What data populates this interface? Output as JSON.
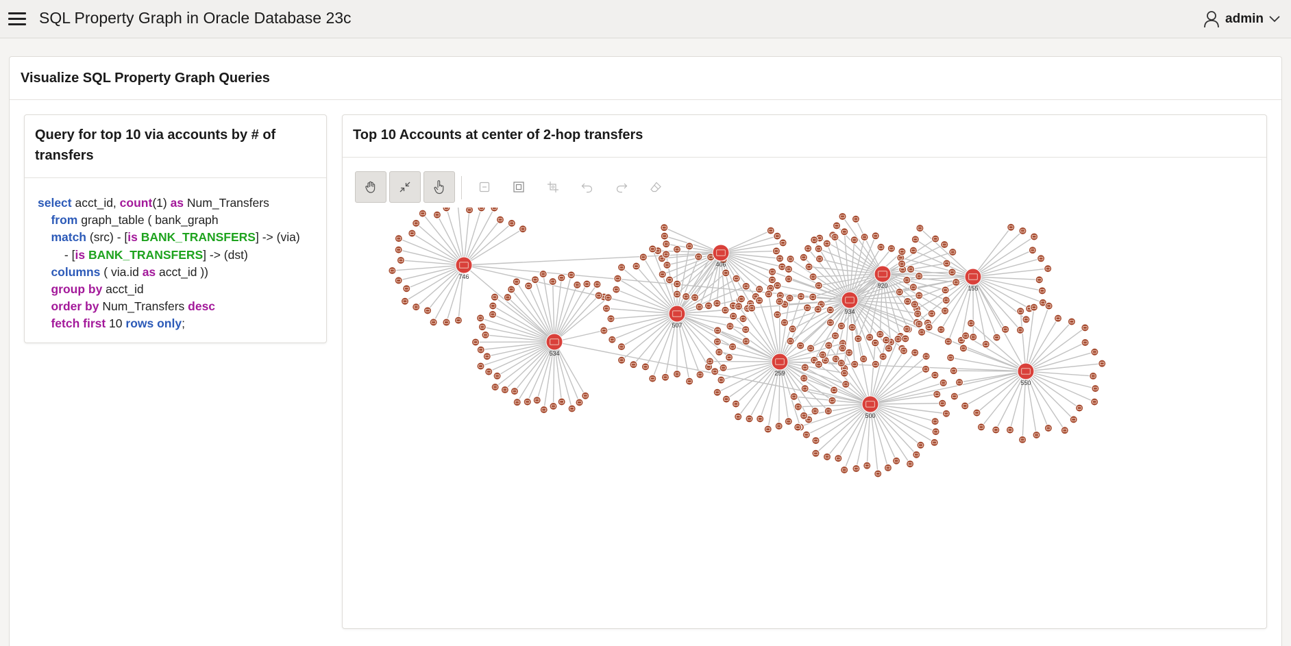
{
  "header": {
    "app_title": "SQL Property Graph in Oracle Database 23c",
    "user_name": "admin",
    "menu_icon": "hamburger-menu-icon",
    "user_icon": "user-icon",
    "user_dropdown_icon": "chevron-down-icon"
  },
  "region": {
    "title": "Visualize SQL Property Graph Queries"
  },
  "query_card": {
    "title": "Query for top 10 via accounts by # of transfers",
    "code_lines": [
      [
        [
          "kw",
          "select"
        ],
        [
          "t",
          " acct_id, "
        ],
        [
          "kp",
          "count"
        ],
        [
          "t",
          "(1) "
        ],
        [
          "kp",
          "as"
        ],
        [
          "t",
          " Num_Transfers"
        ]
      ],
      [
        [
          "t",
          "    "
        ],
        [
          "kw",
          "from"
        ],
        [
          "t",
          " graph_table ( bank_graph"
        ]
      ],
      [
        [
          "t",
          "    "
        ],
        [
          "kw",
          "match"
        ],
        [
          "t",
          " (src) - ["
        ],
        [
          "kp",
          "is"
        ],
        [
          "t",
          " "
        ],
        [
          "kg",
          "BANK_TRANSFERS"
        ],
        [
          "t",
          "] -> (via)"
        ]
      ],
      [
        [
          "t",
          "        - ["
        ],
        [
          "kp",
          "is"
        ],
        [
          "t",
          " "
        ],
        [
          "kg",
          "BANK_TRANSFERS"
        ],
        [
          "t",
          "] -> (dst)"
        ]
      ],
      [
        [
          "t",
          "    "
        ],
        [
          "kw",
          "columns"
        ],
        [
          "t",
          " ( via.id "
        ],
        [
          "kp",
          "as"
        ],
        [
          "t",
          " acct_id ))"
        ]
      ],
      [
        [
          "t",
          "    "
        ],
        [
          "kp",
          "group by"
        ],
        [
          "t",
          " acct_id"
        ]
      ],
      [
        [
          "t",
          "    "
        ],
        [
          "kp",
          "order by"
        ],
        [
          "t",
          " Num_Transfers "
        ],
        [
          "kp",
          "desc"
        ]
      ],
      [
        [
          "t",
          "    "
        ],
        [
          "kp",
          "fetch first"
        ],
        [
          "t",
          " 10 "
        ],
        [
          "kw",
          "rows only"
        ],
        [
          "t",
          ";"
        ]
      ]
    ],
    "colors": {
      "keyword_blue": "#2c5ab8",
      "keyword_purple": "#a3199a",
      "keyword_green": "#1ea31e"
    }
  },
  "graph_card": {
    "title": "Top 10 Accounts at center of 2-hop transfers",
    "toolbar": [
      {
        "name": "pan-tool-button",
        "icon": "hand-icon",
        "active": true,
        "enabled": true
      },
      {
        "name": "fit-to-screen-button",
        "icon": "compress-arrows-icon",
        "active": true,
        "enabled": true
      },
      {
        "name": "select-tool-button",
        "icon": "pointer-hand-icon",
        "active": true,
        "enabled": true
      },
      {
        "name": "collapse-button",
        "icon": "minus-box-icon",
        "active": false,
        "enabled": false
      },
      {
        "name": "focus-button",
        "icon": "focus-frame-icon",
        "active": false,
        "enabled": false
      },
      {
        "name": "group-button",
        "icon": "group-nodes-icon",
        "active": false,
        "enabled": false
      },
      {
        "name": "undo-button",
        "icon": "undo-icon",
        "active": false,
        "enabled": false
      },
      {
        "name": "redo-button",
        "icon": "redo-icon",
        "active": false,
        "enabled": false
      },
      {
        "name": "reset-button",
        "icon": "eraser-icon",
        "active": false,
        "enabled": false
      }
    ],
    "graph": {
      "hub_color": "#d9403a",
      "leaf_color": "#a64d32",
      "edge_color": "#c2c2c2",
      "hubs": [
        {
          "label": "746",
          "leaves": 24
        },
        {
          "label": "406",
          "leaves": 30
        },
        {
          "label": "920",
          "leaves": 34
        },
        {
          "label": "155",
          "leaves": 30
        },
        {
          "label": "934",
          "leaves": 44
        },
        {
          "label": "507",
          "leaves": 38
        },
        {
          "label": "534",
          "leaves": 38
        },
        {
          "label": "259",
          "leaves": 38
        },
        {
          "label": "500",
          "leaves": 40
        },
        {
          "label": "550",
          "leaves": 30
        }
      ]
    }
  }
}
